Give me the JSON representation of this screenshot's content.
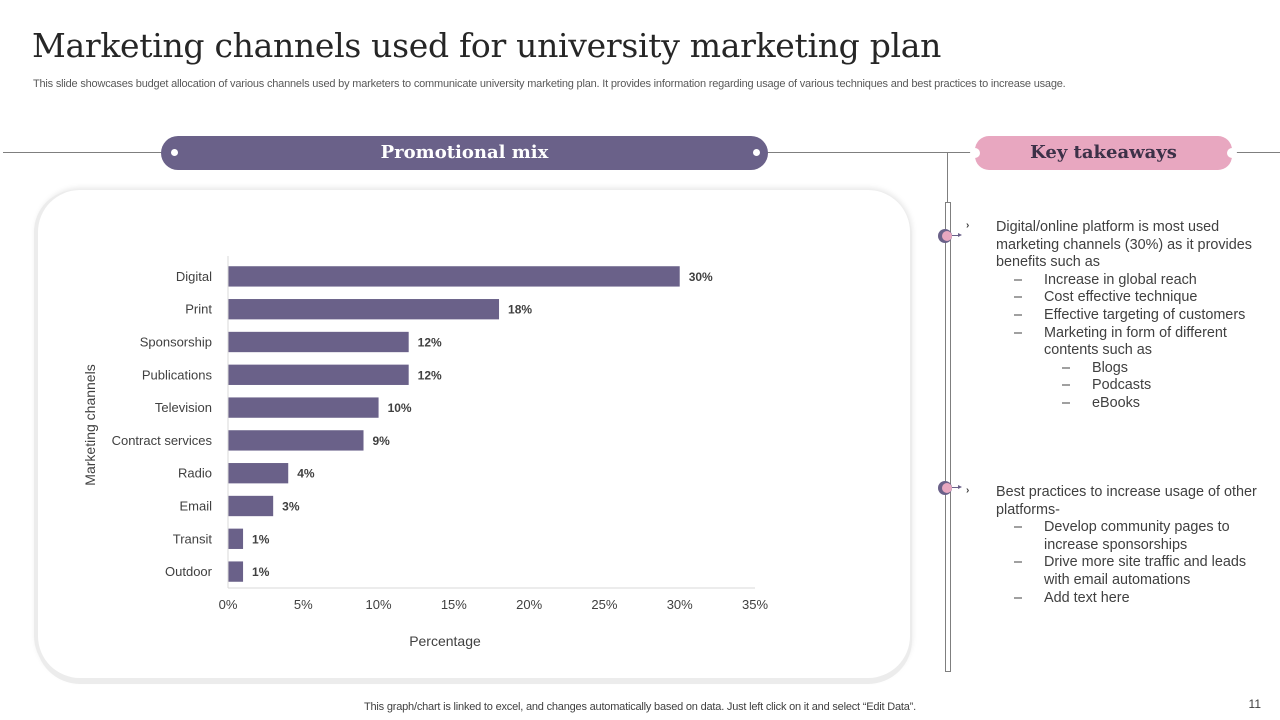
{
  "slide": {
    "title": "Marketing channels used for university marketing plan",
    "subtitle": "This slide showcases budget allocation of various channels used by marketers to communicate  university marketing plan. It provides information regarding usage of various techniques and best practices to increase usage.",
    "footer_note": "This graph/chart is linked to excel,  and changes automatically based on data. Just left click on it and select “Edit Data”.",
    "page_number": "11"
  },
  "banners": {
    "promotional_mix": "Promotional mix",
    "key_takeaways": "Key takeaways"
  },
  "colors": {
    "bar": "#6a6189",
    "accent_purple": "#6a6189",
    "accent_pink": "#e8a7c0"
  },
  "chart_data": {
    "type": "bar",
    "orientation": "horizontal",
    "categories": [
      "Digital",
      "Print",
      "Sponsorship",
      "Publications",
      "Television",
      "Contract services",
      "Radio",
      "Email",
      "Transit",
      "Outdoor"
    ],
    "values": [
      30,
      18,
      12,
      12,
      10,
      9,
      4,
      3,
      1,
      1
    ],
    "data_labels": [
      "30%",
      "18%",
      "12%",
      "12%",
      "10%",
      "9%",
      "4%",
      "3%",
      "1%",
      "1%"
    ],
    "xlabel": "Percentage",
    "ylabel": "Marketing channels",
    "xlim": [
      0,
      35
    ],
    "xticks": [
      0,
      5,
      10,
      15,
      20,
      25,
      30,
      35
    ],
    "xtick_labels": [
      "0%",
      "5%",
      "10%",
      "15%",
      "20%",
      "25%",
      "30%",
      "35%"
    ],
    "grid": false,
    "legend": "none"
  },
  "takeaways": [
    {
      "lines": [
        {
          "level": 0,
          "text": "Digital/online platform is most used marketing channels (30%) as it provides benefits such as"
        },
        {
          "level": 1,
          "text": "Increase in global reach"
        },
        {
          "level": 1,
          "text": "Cost effective technique"
        },
        {
          "level": 1,
          "text": "Effective targeting of customers"
        },
        {
          "level": 1,
          "text": "Marketing in form of different contents such as"
        },
        {
          "level": 2,
          "text": "Blogs"
        },
        {
          "level": 2,
          "text": "Podcasts"
        },
        {
          "level": 2,
          "text": "eBooks"
        }
      ]
    },
    {
      "lines": [
        {
          "level": 0,
          "text": "Best practices to increase usage of other platforms-"
        },
        {
          "level": 1,
          "text": "Develop community pages to increase sponsorships"
        },
        {
          "level": 1,
          "text": "Drive more site traffic and leads with email automations"
        },
        {
          "level": 1,
          "text": "Add text here"
        }
      ]
    }
  ],
  "dash_glyph": "–",
  "chevron_glyph": "›"
}
